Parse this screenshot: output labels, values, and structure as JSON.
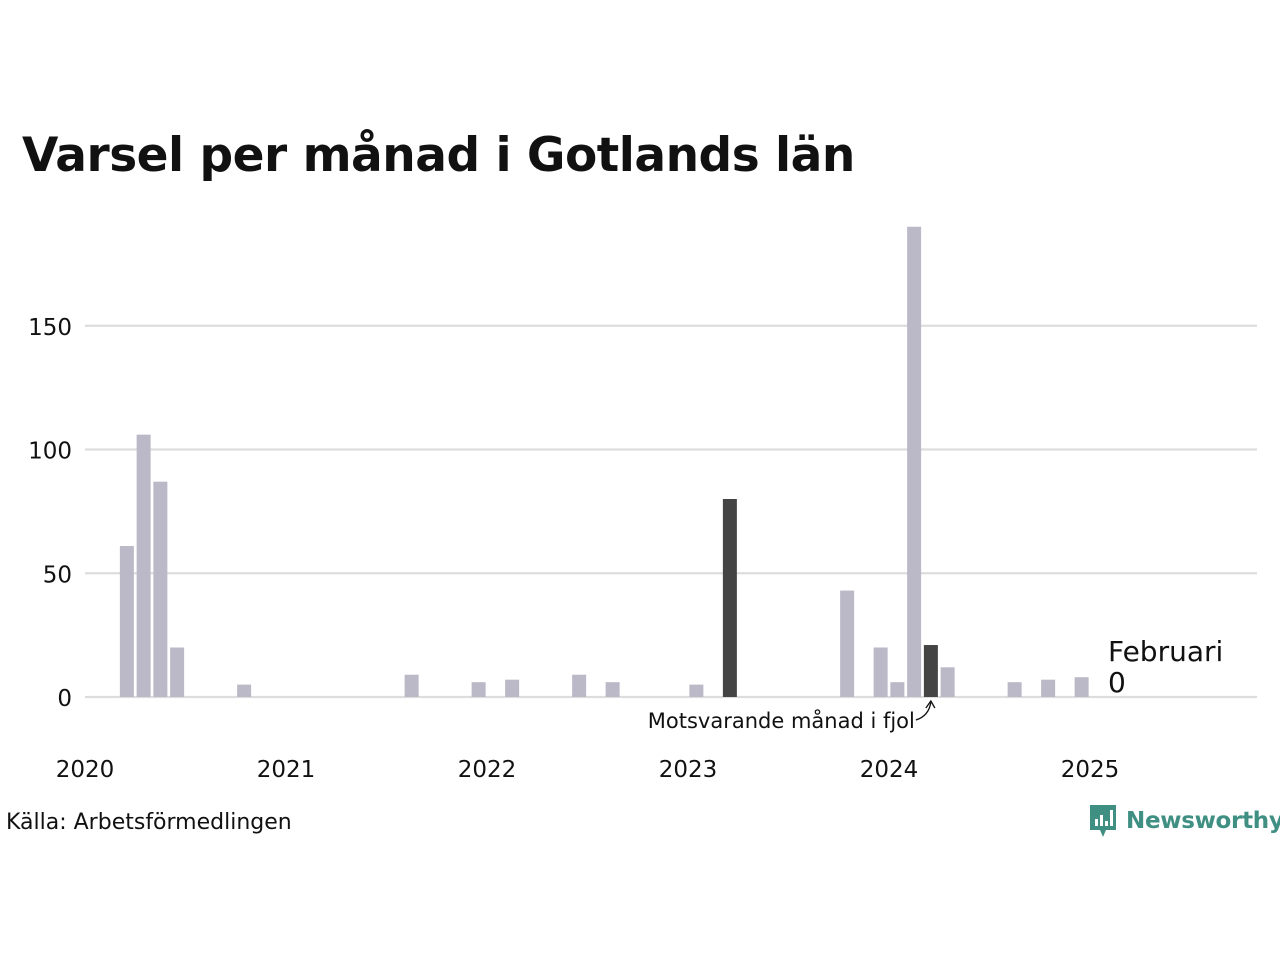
{
  "chart_data": {
    "type": "bar",
    "title": "Varsel per månad i Gotlands län",
    "xlabel": "",
    "ylabel": "",
    "x_start": "2020-01",
    "x_end": "2025-12",
    "ylim": [
      0,
      190
    ],
    "yticks": [
      0,
      50,
      100,
      150
    ],
    "xtick_labels": [
      "2020",
      "2021",
      "2022",
      "2023",
      "2024",
      "2025"
    ],
    "grid": true,
    "colors": {
      "bar": "#bbb9c8",
      "highlight": "#444444",
      "grid": "#dddddd"
    },
    "series": [
      {
        "values": [
          {
            "x": "2020-02",
            "y": 61
          },
          {
            "x": "2020-03",
            "y": 106
          },
          {
            "x": "2020-04",
            "y": 87
          },
          {
            "x": "2020-05",
            "y": 20
          },
          {
            "x": "2020-09",
            "y": 5
          },
          {
            "x": "2021-07",
            "y": 9
          },
          {
            "x": "2021-11",
            "y": 6
          },
          {
            "x": "2022-01",
            "y": 7
          },
          {
            "x": "2022-05",
            "y": 9
          },
          {
            "x": "2022-07",
            "y": 6
          },
          {
            "x": "2022-12",
            "y": 5
          },
          {
            "x": "2023-02",
            "y": 80,
            "highlight": true
          },
          {
            "x": "2023-09",
            "y": 43
          },
          {
            "x": "2023-11",
            "y": 20
          },
          {
            "x": "2023-12",
            "y": 6
          },
          {
            "x": "2024-01",
            "y": 190
          },
          {
            "x": "2024-02",
            "y": 21,
            "highlight": true
          },
          {
            "x": "2024-03",
            "y": 12
          },
          {
            "x": "2024-07",
            "y": 6
          },
          {
            "x": "2024-09",
            "y": 7
          },
          {
            "x": "2024-11",
            "y": 8
          }
        ]
      }
    ],
    "annotations": {
      "previous_year": "Motsvarande månad i fjol",
      "current_month": "Februari",
      "current_value": "0"
    }
  },
  "footer": {
    "source": "Källa: Arbetsförmedlingen",
    "brand": "Newsworthy"
  }
}
